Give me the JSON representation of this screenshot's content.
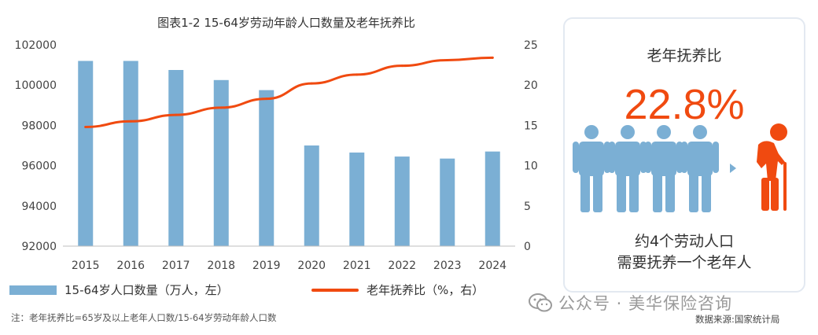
{
  "chart_data": {
    "type": "bar+line",
    "title": "图表1-2  15-64岁劳动年龄人口数量及老年抚养比",
    "categories": [
      "2015",
      "2016",
      "2017",
      "2018",
      "2019",
      "2020",
      "2021",
      "2022",
      "2023",
      "2024"
    ],
    "series": [
      {
        "name": "15-64岁人口数量（万人，左）",
        "type": "bar",
        "axis": "left",
        "color": "#7bafd4",
        "values": [
          101200,
          101200,
          100750,
          100250,
          99750,
          97000,
          96650,
          96450,
          96350,
          96700
        ]
      },
      {
        "name": "老年抚养比（%，右）",
        "type": "line",
        "axis": "right",
        "color": "#f04a10",
        "values": [
          14.8,
          15.5,
          16.3,
          17.2,
          18.3,
          20.2,
          21.3,
          22.4,
          23.1,
          23.4
        ]
      }
    ],
    "left_axis": {
      "min": 92000,
      "max": 102000,
      "ticks": [
        "92000",
        "94000",
        "96000",
        "98000",
        "100000",
        "102000"
      ]
    },
    "right_axis": {
      "min": 0,
      "max": 25,
      "ticks": [
        "0",
        "5",
        "10",
        "15",
        "20",
        "25"
      ]
    }
  },
  "legend": {
    "bar_label": "15-64岁人口数量（万人，左）",
    "line_label": "老年抚养比（%，右）"
  },
  "note": "注：老年抚养比=65岁及以上老年人口数/15-64岁劳动年龄人口数",
  "source": "数据来源:国家统计局",
  "watermark": "公众号 · 美华保险咨询",
  "card": {
    "title": "老年抚养比",
    "value": "22.8%",
    "desc_line1": "约4个劳动人口",
    "desc_line2": "需要抚养一个老年人",
    "accent": "#f04a10",
    "person_color": "#7bafd4"
  }
}
